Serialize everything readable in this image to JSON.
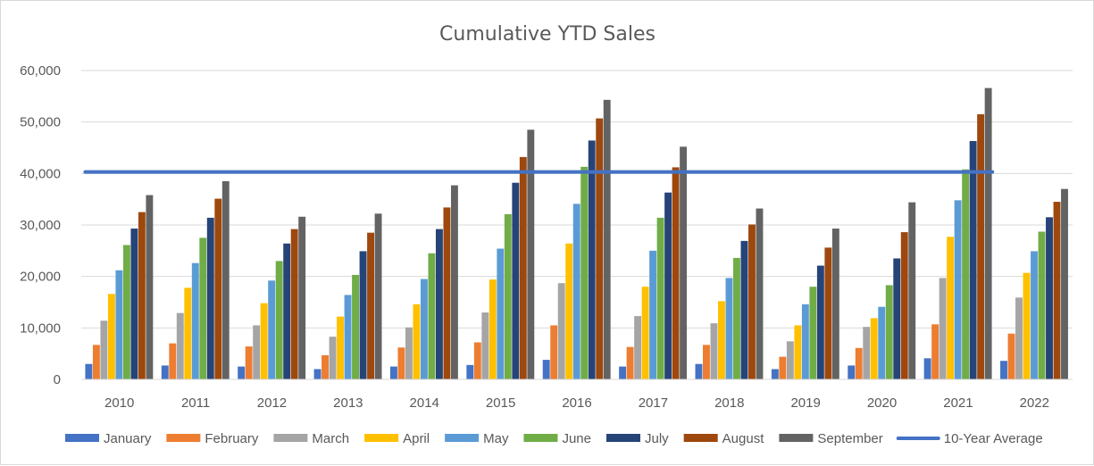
{
  "chart_data": {
    "type": "bar",
    "title": "Cumulative YTD Sales",
    "xlabel": "",
    "ylabel": "",
    "categories": [
      "2010",
      "2011",
      "2012",
      "2013",
      "2014",
      "2015",
      "2016",
      "2017",
      "2018",
      "2019",
      "2020",
      "2021",
      "2022"
    ],
    "ylim": [
      0,
      60000
    ],
    "yticks": [
      0,
      10000,
      20000,
      30000,
      40000,
      50000,
      60000
    ],
    "ytick_labels": [
      "0",
      "10,000",
      "20,000",
      "30,000",
      "40,000",
      "50,000",
      "60,000"
    ],
    "grid": true,
    "legend_position": "bottom",
    "series": [
      {
        "name": "January",
        "color": "#4472C4",
        "values": [
          3000,
          2700,
          2500,
          2000,
          2500,
          2800,
          3800,
          2500,
          3000,
          2000,
          2700,
          4100,
          3600
        ]
      },
      {
        "name": "February",
        "color": "#ED7D31",
        "values": [
          6700,
          7000,
          6400,
          4700,
          6200,
          7200,
          10500,
          6300,
          6700,
          4400,
          6100,
          10700,
          8900
        ]
      },
      {
        "name": "March",
        "color": "#A5A5A5",
        "values": [
          11400,
          12900,
          10500,
          8300,
          10100,
          13000,
          18700,
          12300,
          10900,
          7400,
          10200,
          19700,
          15900
        ]
      },
      {
        "name": "April",
        "color": "#FFC000",
        "values": [
          16600,
          17800,
          14800,
          12200,
          14600,
          19400,
          26400,
          18000,
          15200,
          10500,
          11900,
          27700,
          20700
        ]
      },
      {
        "name": "May",
        "color": "#5B9BD5",
        "values": [
          21200,
          22600,
          19200,
          16400,
          19500,
          25400,
          34100,
          25000,
          19700,
          14600,
          14100,
          34800,
          24900
        ]
      },
      {
        "name": "June",
        "color": "#70AD47",
        "values": [
          26100,
          27500,
          23000,
          20300,
          24500,
          32100,
          41300,
          31400,
          23600,
          18000,
          18300,
          40800,
          28700
        ]
      },
      {
        "name": "July",
        "color": "#264478",
        "values": [
          29300,
          31400,
          26400,
          24900,
          29200,
          38200,
          46400,
          36300,
          26900,
          22100,
          23500,
          46300,
          31500
        ]
      },
      {
        "name": "August",
        "color": "#9E480E",
        "values": [
          32500,
          35100,
          29200,
          28500,
          33400,
          43200,
          50700,
          41200,
          30100,
          25600,
          28600,
          51500,
          34500
        ]
      },
      {
        "name": "September",
        "color": "#636363",
        "values": [
          35800,
          38500,
          31600,
          32200,
          37700,
          48500,
          54300,
          45200,
          33200,
          29300,
          34400,
          56600,
          37000
        ]
      }
    ],
    "reference_line": {
      "name": "10-Year Average",
      "color": "#4472C4",
      "value": 40300,
      "from": "2010",
      "to": "2021"
    }
  }
}
